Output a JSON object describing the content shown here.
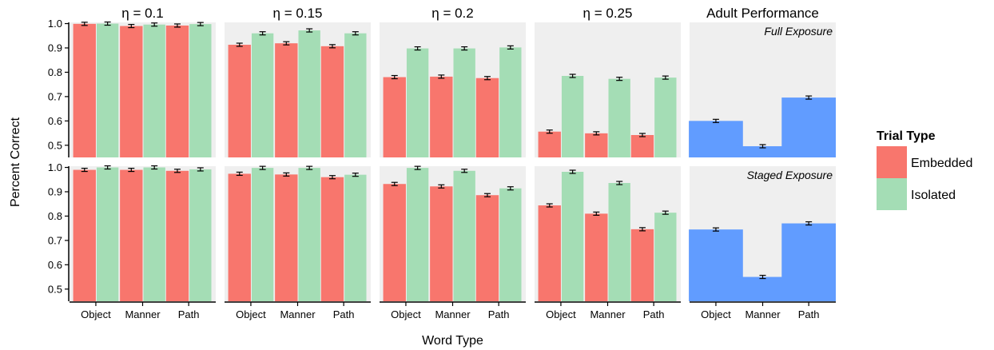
{
  "chart_data": {
    "type": "bar",
    "xlabel": "Word Type",
    "ylabel": "Percent Correct",
    "categories": [
      "Object",
      "Manner",
      "Path"
    ],
    "y_ticks": [
      "0.5",
      "0.6",
      "0.7",
      "0.8",
      "0.9",
      "1.0"
    ],
    "ylim": [
      0.45,
      1.005
    ],
    "grid": false,
    "facets": {
      "columns": [
        "η = 0.1",
        "η = 0.15",
        "η = 0.2",
        "η = 0.25",
        "Adult Performance"
      ],
      "rows": [
        "Full Exposure",
        "Staged Exposure"
      ]
    },
    "legend": {
      "title": "Trial Type",
      "placement": "right",
      "entries": [
        {
          "name": "Embedded",
          "color": "#F8766D"
        },
        {
          "name": "Isolated",
          "color": "#A4DDB5"
        }
      ]
    },
    "adult_color": "#619CFF",
    "panel_background": "#EFEFEF",
    "panels": [
      {
        "row": "Full Exposure",
        "column": "η = 0.1",
        "embedded": [
          0.999,
          0.99,
          0.992
        ],
        "isolated": [
          1.0,
          0.996,
          0.998
        ]
      },
      {
        "row": "Full Exposure",
        "column": "η = 0.15",
        "embedded": [
          0.913,
          0.919,
          0.907
        ],
        "isolated": [
          0.96,
          0.972,
          0.96
        ]
      },
      {
        "row": "Full Exposure",
        "column": "η = 0.2",
        "embedded": [
          0.78,
          0.782,
          0.776
        ],
        "isolated": [
          0.898,
          0.898,
          0.902
        ]
      },
      {
        "row": "Full Exposure",
        "column": "η = 0.25",
        "embedded": [
          0.556,
          0.549,
          0.542
        ],
        "isolated": [
          0.785,
          0.773,
          0.778
        ]
      },
      {
        "row": "Full Exposure",
        "column": "Adult Performance",
        "adult": [
          0.6,
          0.496,
          0.696
        ]
      },
      {
        "row": "Staged Exposure",
        "column": "η = 0.1",
        "embedded": [
          0.99,
          0.99,
          0.986
        ],
        "isolated": [
          1.0,
          1.0,
          0.992
        ]
      },
      {
        "row": "Staged Exposure",
        "column": "η = 0.15",
        "embedded": [
          0.974,
          0.971,
          0.96
        ],
        "isolated": [
          0.998,
          0.998,
          0.97
        ]
      },
      {
        "row": "Staged Exposure",
        "column": "η = 0.2",
        "embedded": [
          0.932,
          0.922,
          0.886
        ],
        "isolated": [
          0.998,
          0.986,
          0.914
        ]
      },
      {
        "row": "Staged Exposure",
        "column": "η = 0.25",
        "embedded": [
          0.844,
          0.81,
          0.746
        ],
        "isolated": [
          0.982,
          0.936,
          0.814
        ]
      },
      {
        "row": "Staged Exposure",
        "column": "Adult Performance",
        "adult": [
          0.745,
          0.55,
          0.77
        ]
      }
    ]
  }
}
